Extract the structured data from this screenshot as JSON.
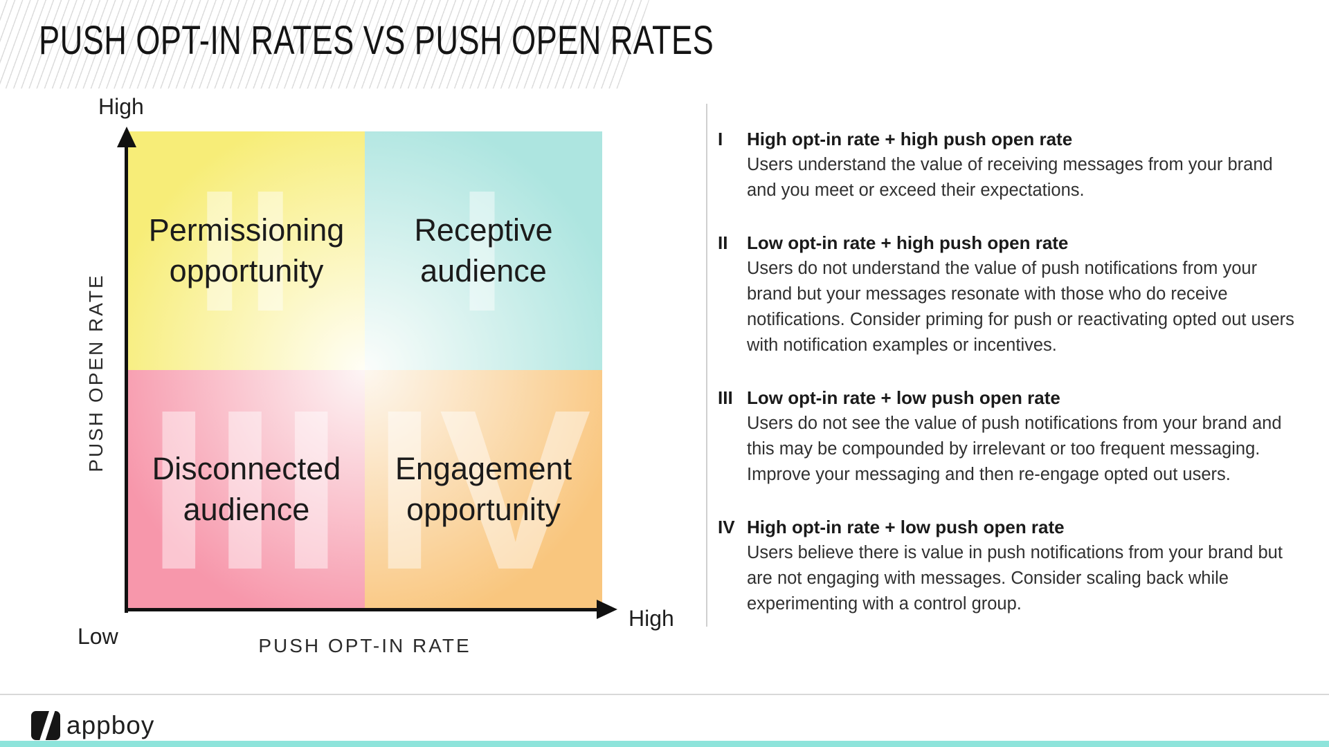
{
  "slide": {
    "title": "PUSH OPT-IN RATES VS PUSH OPEN RATES"
  },
  "chart": {
    "type": "quadrant-matrix",
    "x_axis": {
      "label": "PUSH OPT-IN RATE",
      "low": "Low",
      "high": "High"
    },
    "y_axis": {
      "label": "PUSH OPEN RATE",
      "high": "High"
    },
    "quadrants": [
      {
        "position": "top-left",
        "numeral": "II",
        "label_line1": "Permissioning",
        "label_line2": "opportunity",
        "color": "#F7ED78"
      },
      {
        "position": "top-right",
        "numeral": "I",
        "label_line1": "Receptive",
        "label_line2": "audience",
        "color": "#ADE5E0"
      },
      {
        "position": "bottom-left",
        "numeral": "III",
        "label_line1": "Disconnected",
        "label_line2": "audience",
        "color": "#F797AB"
      },
      {
        "position": "bottom-right",
        "numeral": "IV",
        "label_line1": "Engagement",
        "label_line2": "opportunity",
        "color": "#F9C67E"
      }
    ]
  },
  "legend": {
    "items": [
      {
        "numeral": "I",
        "heading": "High opt-in rate + high push open rate",
        "body": "Users understand the value of receiving messages from your brand and you meet or exceed their expectations."
      },
      {
        "numeral": "II",
        "heading": "Low opt-in rate + high push open rate",
        "body": "Users do not understand the value of push notifications from your brand but your messages resonate with those who do receive notifications. Consider priming for push or reactivating opted out users with notification examples or incentives."
      },
      {
        "numeral": "III",
        "heading": "Low opt-in rate + low push open rate",
        "body": "Users do not see the value of push notifications from your brand and this may be compounded by irrelevant or too frequent messaging. Improve your messaging and then re-engage opted out users."
      },
      {
        "numeral": "IV",
        "heading": "High opt-in rate + low push open rate",
        "body": "Users believe there is value in push notifications from your brand but are not engaging with messages. Consider scaling back while experimenting with a control group."
      }
    ]
  },
  "footer": {
    "brand": "appboy",
    "accent_color": "#8EE4DB"
  }
}
